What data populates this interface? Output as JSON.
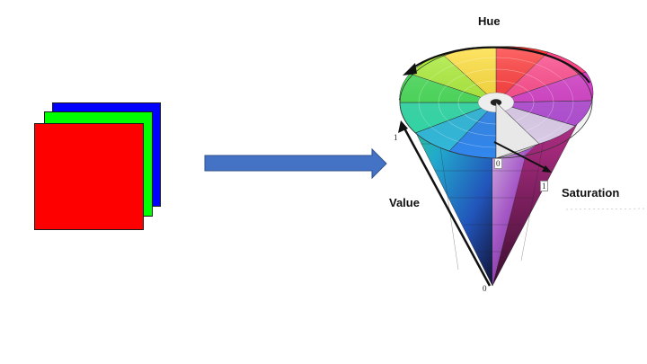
{
  "labels": {
    "hue": "Hue",
    "value": "Value",
    "saturation": "Saturation"
  },
  "ticks": {
    "value_max": "1",
    "value_min": "0",
    "saturation_min": "0",
    "saturation_max": "1"
  },
  "colors": {
    "red_layer": "#ff0000",
    "green_layer": "#00ff00",
    "blue_layer": "#0000ff",
    "arrow_fill": "#4472c4",
    "arrow_stroke": "#2f528f"
  },
  "icons": {
    "rgb_layers": "rgb-channel-stack-icon",
    "transform_arrow": "right-arrow-icon",
    "hsv_cone": "hsv-cone-icon"
  }
}
